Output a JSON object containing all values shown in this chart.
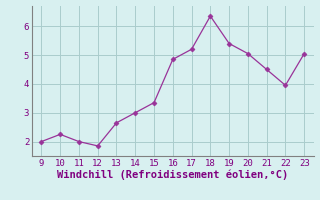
{
  "x": [
    9,
    10,
    11,
    12,
    13,
    14,
    15,
    16,
    17,
    18,
    19,
    20,
    21,
    22,
    23
  ],
  "y": [
    2.0,
    2.25,
    2.0,
    1.85,
    2.65,
    3.0,
    3.35,
    4.85,
    5.2,
    6.35,
    5.4,
    5.05,
    4.5,
    3.95,
    5.05
  ],
  "line_color": "#993399",
  "marker": "D",
  "marker_size": 2.5,
  "xlabel": "Windchill (Refroidissement éolien,°C)",
  "xlabel_color": "#800080",
  "background_color": "#d8f0f0",
  "grid_color": "#aacccc",
  "tick_color": "#800080",
  "spine_color": "#808080",
  "xlim": [
    8.5,
    23.5
  ],
  "ylim": [
    1.5,
    6.7
  ],
  "yticks": [
    2,
    3,
    4,
    5,
    6
  ],
  "xticks": [
    9,
    10,
    11,
    12,
    13,
    14,
    15,
    16,
    17,
    18,
    19,
    20,
    21,
    22,
    23
  ],
  "tick_fontsize": 6.5,
  "xlabel_fontsize": 7.5
}
